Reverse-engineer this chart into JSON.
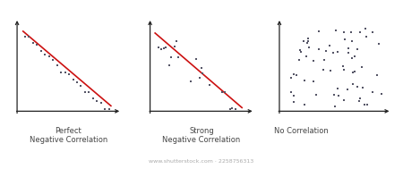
{
  "background_color": "#ffffff",
  "text_color": "#444444",
  "dot_color": "#555566",
  "line_color": "#cc1111",
  "panels": [
    {
      "title": "Perfect\nNegative Correlation",
      "title_align": "center"
    },
    {
      "title": "Strong\nNegative Correlation",
      "title_align": "center"
    },
    {
      "title": "No Correlation",
      "title_align": "left"
    }
  ],
  "dot_size": 2.5,
  "line_width": 1.2,
  "title_fontsize": 6.0,
  "watermark": "www.shutterstock.com · 2258756313",
  "watermark_fontsize": 4.5,
  "watermark_color": "#aaaaaa"
}
